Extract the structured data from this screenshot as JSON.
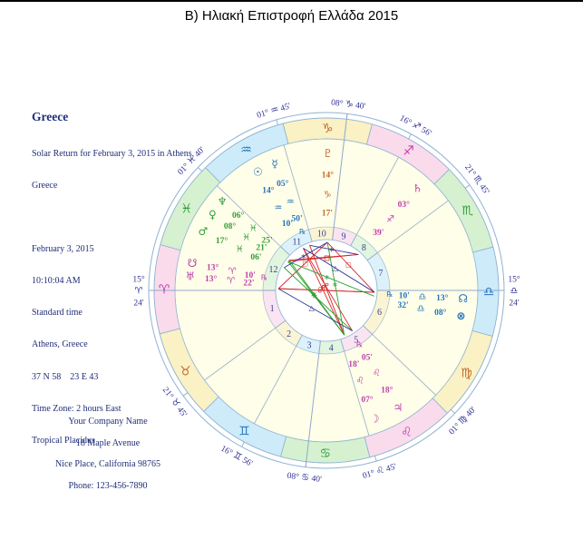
{
  "title": "Β) Ηλιακή Επιστροφή Ελλάδα 2015",
  "info": {
    "heading": "Greece",
    "lines": [
      "Solar Return for February 3, 2015 in Athens,",
      "Greece",
      "",
      "February 3, 2015",
      "10:10:04 AM",
      "Standard time",
      "Athens, Greece",
      "37 N 58    23 E 43",
      "Time Zone: 2 hours East",
      "Tropical Placidus"
    ]
  },
  "company": {
    "lines": [
      "Your Company Name",
      "18 Maple Avenue",
      "Nice Place, California 98765",
      "Phone: 123-456-7890"
    ]
  },
  "chart_data": {
    "type": "astrology_wheel",
    "house_system": "Placidus",
    "zodiac": "Tropical",
    "ascendant_lon": 15.4,
    "signs": [
      {
        "name": "aries",
        "glyph": "♈",
        "element": "fire"
      },
      {
        "name": "taurus",
        "glyph": "♉",
        "element": "earth"
      },
      {
        "name": "gemini",
        "glyph": "♊",
        "element": "air"
      },
      {
        "name": "cancer",
        "glyph": "♋",
        "element": "water"
      },
      {
        "name": "leo",
        "glyph": "♌",
        "element": "fire"
      },
      {
        "name": "virgo",
        "glyph": "♍",
        "element": "earth"
      },
      {
        "name": "libra",
        "glyph": "♎",
        "element": "air"
      },
      {
        "name": "scorpio",
        "glyph": "♏",
        "element": "water"
      },
      {
        "name": "sagittarius",
        "glyph": "♐",
        "element": "fire"
      },
      {
        "name": "capricorn",
        "glyph": "♑",
        "element": "earth"
      },
      {
        "name": "aquarius",
        "glyph": "♒",
        "element": "air"
      },
      {
        "name": "pisces",
        "glyph": "♓",
        "element": "water"
      }
    ],
    "house_cusps": [
      {
        "house": 1,
        "lon": 15.4,
        "deg": "15°",
        "sign": "♈",
        "min": "24'"
      },
      {
        "house": 2,
        "lon": 51.75,
        "deg": "21°",
        "sign": "♉",
        "min": "45'"
      },
      {
        "house": 3,
        "lon": 76.93,
        "deg": "16°",
        "sign": "♊",
        "min": "56'"
      },
      {
        "house": 4,
        "lon": 98.67,
        "deg": "08°",
        "sign": "♋",
        "min": "40'"
      },
      {
        "house": 5,
        "lon": 121.75,
        "deg": "01°",
        "sign": "♌",
        "min": "45'"
      },
      {
        "house": 6,
        "lon": 151.67,
        "deg": "01°",
        "sign": "♍",
        "min": "40'"
      },
      {
        "house": 7,
        "lon": 195.4,
        "deg": "15°",
        "sign": "♎",
        "min": "24'"
      },
      {
        "house": 8,
        "lon": 231.75,
        "deg": "21°",
        "sign": "♏",
        "min": "45'"
      },
      {
        "house": 9,
        "lon": 256.93,
        "deg": "16°",
        "sign": "♐",
        "min": "56'"
      },
      {
        "house": 10,
        "lon": 278.67,
        "deg": "08°",
        "sign": "♑",
        "min": "40'"
      },
      {
        "house": 11,
        "lon": 301.75,
        "deg": "01°",
        "sign": "♒",
        "min": "45'"
      },
      {
        "house": 12,
        "lon": 331.67,
        "deg": "01°",
        "sign": "♓",
        "min": "40'"
      }
    ],
    "planets": [
      {
        "name": "pluto",
        "glyph": "♇",
        "deg": "14°",
        "sign": "♑",
        "min": "17'",
        "retro": false,
        "lon": 284.28,
        "element": "earth"
      },
      {
        "name": "mercury",
        "glyph": "☿",
        "deg": "05°",
        "sign": "♒",
        "min": "50'",
        "retro": true,
        "lon": 305.83,
        "element": "air"
      },
      {
        "name": "sun",
        "glyph": "☉",
        "deg": "14°",
        "sign": "♒",
        "min": "10'",
        "retro": false,
        "lon": 314.17,
        "element": "air"
      },
      {
        "name": "neptune",
        "glyph": "♆",
        "deg": "06°",
        "sign": "♓",
        "min": "25'",
        "retro": false,
        "lon": 336.42,
        "element": "water"
      },
      {
        "name": "venus",
        "glyph": "♀",
        "deg": "08°",
        "sign": "♓",
        "min": "21'",
        "retro": false,
        "lon": 338.35,
        "element": "water"
      },
      {
        "name": "mars",
        "glyph": "♂",
        "deg": "17°",
        "sign": "♓",
        "min": "06'",
        "retro": false,
        "lon": 347.1,
        "element": "water"
      },
      {
        "name": "south-node",
        "glyph": "☋",
        "deg": "13°",
        "sign": "♈",
        "min": "10'",
        "retro": true,
        "lon": 13.17,
        "element": "fire"
      },
      {
        "name": "uranus",
        "glyph": "♅",
        "deg": "13°",
        "sign": "♈",
        "min": "22'",
        "retro": false,
        "lon": 13.37,
        "element": "fire"
      },
      {
        "name": "moon",
        "glyph": "☽",
        "deg": "07°",
        "sign": "♌",
        "min": "18'",
        "retro": false,
        "lon": 127.3,
        "element": "fire"
      },
      {
        "name": "jupiter",
        "glyph": "♃",
        "deg": "18°",
        "sign": "♌",
        "min": "05'",
        "retro": true,
        "lon": 138.08,
        "element": "fire"
      },
      {
        "name": "saturn",
        "glyph": "♄",
        "deg": "03°",
        "sign": "♐",
        "min": "39'",
        "retro": false,
        "lon": 243.65,
        "element": "fire"
      },
      {
        "name": "north-node",
        "glyph": "☊",
        "deg": "13°",
        "sign": "♎",
        "min": "10'",
        "retro": true,
        "lon": 193.17,
        "element": "air"
      },
      {
        "name": "fortune",
        "glyph": "⊗",
        "deg": "08°",
        "sign": "♎",
        "min": "32'",
        "retro": false,
        "lon": 188.53,
        "element": "air"
      }
    ],
    "aspects": [
      {
        "a": "sun",
        "b": "jupiter",
        "type": "opposition"
      },
      {
        "a": "mercury",
        "b": "moon",
        "type": "opposition"
      },
      {
        "a": "uranus",
        "b": "north-node",
        "type": "opposition"
      },
      {
        "a": "south-node",
        "b": "north-node",
        "type": "opposition"
      },
      {
        "a": "sun",
        "b": "moon",
        "type": "opposition"
      },
      {
        "a": "pluto",
        "b": "uranus",
        "type": "square"
      },
      {
        "a": "pluto",
        "b": "north-node",
        "type": "square"
      },
      {
        "a": "saturn",
        "b": "neptune",
        "type": "square"
      },
      {
        "a": "saturn",
        "b": "venus",
        "type": "square"
      },
      {
        "a": "venus",
        "b": "moon",
        "type": "quincunx"
      },
      {
        "a": "neptune",
        "b": "moon",
        "type": "quincunx"
      },
      {
        "a": "mars",
        "b": "jupiter",
        "type": "quincunx"
      },
      {
        "a": "pluto",
        "b": "moon",
        "type": "quincunx"
      },
      {
        "a": "venus",
        "b": "fortune",
        "type": "quincunx"
      },
      {
        "a": "uranus",
        "b": "jupiter",
        "type": "trine"
      },
      {
        "a": "sun",
        "b": "north-node",
        "type": "trine"
      },
      {
        "a": "mercury",
        "b": "saturn",
        "type": "sextile"
      },
      {
        "a": "mars",
        "b": "pluto",
        "type": "sextile"
      }
    ],
    "colors": {
      "band": {
        "fire": "#FADBEC",
        "earth": "#FAF1C4",
        "air": "#CDEBF9",
        "water": "#D6F1D0"
      },
      "ring": {
        "fire": "#FBE4F1",
        "earth": "#FBF4D3",
        "air": "#DDF1FB",
        "water": "#E2F5DE"
      },
      "text": {
        "fire": "#BE3FAE",
        "earth": "#C16A2B",
        "air": "#2473BE",
        "water": "#359C3F"
      },
      "aspect": {
        "opposition": "#D42A2A",
        "square": "#D42A2A",
        "trine": "#2B3990",
        "sextile": "#2B3990",
        "quincunx": "#2FA02F"
      },
      "house_area": "#FFFEE8",
      "wheel_line": "#8FB3D3",
      "cusp_line": "#8FA9CC",
      "cusp_label": "#2E3192",
      "house_number": "#39418F"
    }
  }
}
